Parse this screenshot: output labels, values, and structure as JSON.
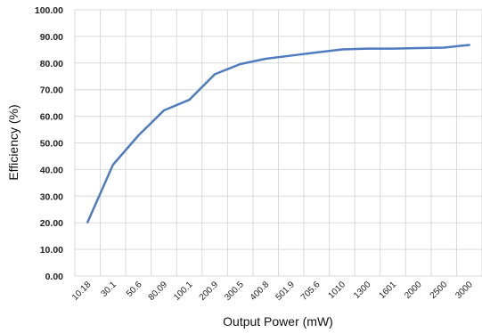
{
  "chart_data": {
    "type": "line",
    "title": "",
    "xlabel": "Output Power (mW)",
    "ylabel": "Efficiency (%)",
    "ylim": [
      0,
      100
    ],
    "y_ticks": [
      "0.00",
      "10.00",
      "20.00",
      "30.00",
      "40.00",
      "50.00",
      "60.00",
      "70.00",
      "80.00",
      "90.00",
      "100.00"
    ],
    "grid": true,
    "legend": "none",
    "categories": [
      "10.18",
      "30.1",
      "50.6",
      "80.09",
      "100.1",
      "200.9",
      "300.5",
      "400.8",
      "501.9",
      "705.6",
      "1010",
      "1300",
      "1601",
      "2000",
      "2500",
      "3000"
    ],
    "series": [
      {
        "color": "#4f7bbf",
        "values": [
          20.2,
          41.8,
          52.8,
          62.2,
          66.2,
          75.8,
          79.6,
          81.6,
          82.8,
          84.0,
          85.1,
          85.4,
          85.4,
          85.6,
          85.8,
          86.8
        ]
      }
    ]
  }
}
